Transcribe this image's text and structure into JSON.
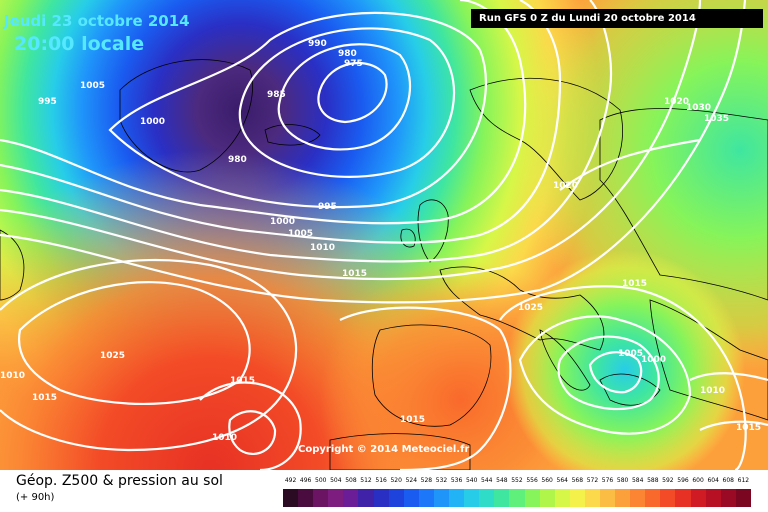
{
  "header": {
    "date": "Jeudi 23 octobre 2014",
    "local_time": "20:00 locale",
    "run": "Run GFS 0 Z du Lundi 20 octobre 2014"
  },
  "copyright": "Copyright © 2014 Meteociel.fr",
  "legend": {
    "title": "Géop. Z500 & pression au sol",
    "subtitle": "(+ 90h)",
    "values": [
      "492",
      "496",
      "500",
      "504",
      "508",
      "512",
      "516",
      "520",
      "524",
      "528",
      "532",
      "536",
      "540",
      "544",
      "548",
      "552",
      "556",
      "560",
      "564",
      "568",
      "572",
      "576",
      "580",
      "584",
      "588",
      "592",
      "596",
      "600",
      "604",
      "608",
      "612"
    ],
    "colors": [
      "#2b0a23",
      "#4a0b3e",
      "#6a1463",
      "#7d1d7f",
      "#6a1d97",
      "#3f22a8",
      "#2a2fc4",
      "#1e43dc",
      "#1a5bf0",
      "#1c78f8",
      "#1f95fa",
      "#22b3f6",
      "#27cde8",
      "#2fdcc8",
      "#3fe6a0",
      "#5ef07a",
      "#86f45a",
      "#b0f64a",
      "#d6f748",
      "#f4f24a",
      "#fbd94a",
      "#fcbd44",
      "#fca03c",
      "#fb8533",
      "#f9692b",
      "#f34b27",
      "#e73124",
      "#d11b24",
      "#b71025",
      "#9a0a25",
      "#7a0622"
    ]
  },
  "isobar_labels": [
    "1005",
    "1000",
    "995",
    "990",
    "980",
    "975",
    "985",
    "980",
    "1000",
    "1005",
    "1010",
    "1015",
    "995",
    "1020",
    "1025",
    "1020",
    "1025",
    "1030",
    "1035",
    "1015",
    "1005",
    "1000",
    "1010",
    "1015",
    "1010",
    "1015",
    "1010",
    "1015",
    "1015"
  ]
}
